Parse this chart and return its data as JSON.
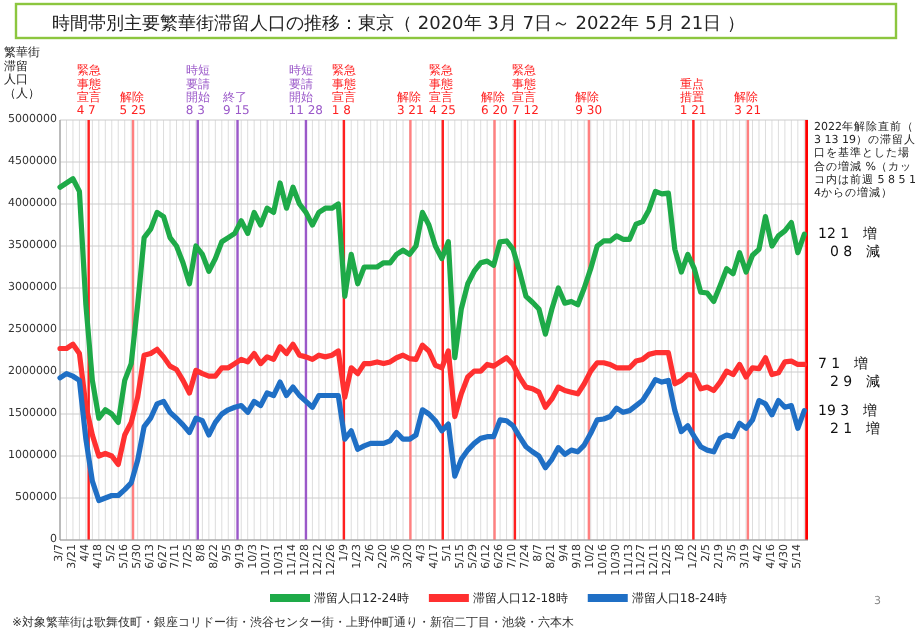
{
  "chart_data": {
    "type": "line",
    "title": "時間帯別主要繁華街滞留人口の推移：東京（ 2020年 3月 7日～ 2022年 5月 21日 ）",
    "ylabel": "繁華街滞留人口（人）",
    "x": [
      "2020-03-07",
      "2020-03-14",
      "2020-03-21",
      "2020-03-28",
      "2020-04-04",
      "2020-04-11",
      "2020-04-18",
      "2020-04-25",
      "2020-05-02",
      "2020-05-09",
      "2020-05-16",
      "2020-05-23",
      "2020-05-30",
      "2020-06-06",
      "2020-06-13",
      "2020-06-20",
      "2020-06-27",
      "2020-07-04",
      "2020-07-11",
      "2020-07-18",
      "2020-07-25",
      "2020-08-01",
      "2020-08-08",
      "2020-08-15",
      "2020-08-22",
      "2020-08-29",
      "2020-09-05",
      "2020-09-12",
      "2020-09-19",
      "2020-09-26",
      "2020-10-03",
      "2020-10-10",
      "2020-10-17",
      "2020-10-24",
      "2020-10-31",
      "2020-11-07",
      "2020-11-14",
      "2020-11-21",
      "2020-11-28",
      "2020-12-05",
      "2020-12-12",
      "2020-12-19",
      "2020-12-26",
      "2021-01-02",
      "2021-01-09",
      "2021-01-16",
      "2021-01-23",
      "2021-01-30",
      "2021-02-06",
      "2021-02-13",
      "2021-02-20",
      "2021-02-27",
      "2021-03-06",
      "2021-03-13",
      "2021-03-20",
      "2021-03-27",
      "2021-04-03",
      "2021-04-10",
      "2021-04-17",
      "2021-04-24",
      "2021-05-01",
      "2021-05-08",
      "2021-05-15",
      "2021-05-22",
      "2021-05-29",
      "2021-06-05",
      "2021-06-12",
      "2021-06-19",
      "2021-06-26",
      "2021-07-03",
      "2021-07-10",
      "2021-07-17",
      "2021-07-24",
      "2021-07-31",
      "2021-08-07",
      "2021-08-14",
      "2021-08-21",
      "2021-08-28",
      "2021-09-04",
      "2021-09-11",
      "2021-09-18",
      "2021-09-25",
      "2021-10-02",
      "2021-10-09",
      "2021-10-16",
      "2021-10-23",
      "2021-10-30",
      "2021-11-06",
      "2021-11-13",
      "2021-11-20",
      "2021-11-27",
      "2021-12-04",
      "2021-12-11",
      "2021-12-18",
      "2021-12-25",
      "2022-01-01",
      "2022-01-08",
      "2022-01-15",
      "2022-01-22",
      "2022-01-29",
      "2022-02-05",
      "2022-02-12",
      "2022-02-19",
      "2022-02-26",
      "2022-03-05",
      "2022-03-12",
      "2022-03-19",
      "2022-03-26",
      "2022-04-02",
      "2022-04-09",
      "2022-04-16",
      "2022-04-23",
      "2022-04-30",
      "2022-05-07",
      "2022-05-14",
      "2022-05-21"
    ],
    "series": [
      {
        "name": "滞留人口12-24時",
        "color": "#1eaa48",
        "values": [
          4200000,
          4250000,
          4300000,
          4150000,
          2800000,
          1900000,
          1450000,
          1550000,
          1500000,
          1400000,
          1900000,
          2100000,
          2800000,
          3600000,
          3700000,
          3900000,
          3850000,
          3600000,
          3500000,
          3300000,
          3050000,
          3500000,
          3400000,
          3200000,
          3350000,
          3550000,
          3600000,
          3650000,
          3800000,
          3650000,
          3900000,
          3750000,
          3950000,
          3900000,
          4250000,
          3950000,
          4200000,
          4000000,
          3900000,
          3750000,
          3900000,
          3950000,
          3950000,
          4000000,
          2900000,
          3400000,
          3050000,
          3250000,
          3250000,
          3250000,
          3300000,
          3300000,
          3400000,
          3450000,
          3400000,
          3500000,
          3900000,
          3750000,
          3500000,
          3350000,
          3550000,
          2170000,
          2750000,
          3050000,
          3200000,
          3300000,
          3320000,
          3270000,
          3550000,
          3560000,
          3460000,
          3200000,
          2900000,
          2830000,
          2750000,
          2450000,
          2750000,
          3000000,
          2820000,
          2840000,
          2800000,
          3000000,
          3230000,
          3500000,
          3560000,
          3560000,
          3620000,
          3580000,
          3580000,
          3760000,
          3790000,
          3930000,
          4150000,
          4120000,
          4130000,
          3460000,
          3190000,
          3400000,
          3230000,
          2950000,
          2940000,
          2840000,
          3030000,
          3230000,
          3170000,
          3420000,
          3190000,
          3390000,
          3460000,
          3850000,
          3500000,
          3620000,
          3680000,
          3780000,
          3420000,
          3640000
        ]
      },
      {
        "name": "滞留人口12-18時",
        "color": "#ff3030",
        "values": [
          2280000,
          2280000,
          2330000,
          2220000,
          1600000,
          1250000,
          1000000,
          1030000,
          1000000,
          900000,
          1250000,
          1400000,
          1700000,
          2200000,
          2220000,
          2270000,
          2180000,
          2070000,
          2030000,
          1900000,
          1750000,
          2020000,
          1980000,
          1950000,
          1950000,
          2050000,
          2050000,
          2100000,
          2150000,
          2120000,
          2220000,
          2100000,
          2180000,
          2150000,
          2300000,
          2220000,
          2330000,
          2200000,
          2180000,
          2150000,
          2200000,
          2180000,
          2200000,
          2250000,
          1700000,
          2050000,
          1980000,
          2100000,
          2100000,
          2120000,
          2100000,
          2120000,
          2170000,
          2200000,
          2160000,
          2150000,
          2320000,
          2250000,
          2080000,
          2050000,
          2250000,
          1470000,
          1740000,
          1940000,
          2010000,
          2010000,
          2090000,
          2070000,
          2120000,
          2170000,
          2090000,
          1940000,
          1820000,
          1800000,
          1760000,
          1580000,
          1680000,
          1820000,
          1780000,
          1760000,
          1740000,
          1860000,
          2010000,
          2110000,
          2110000,
          2090000,
          2050000,
          2050000,
          2050000,
          2130000,
          2150000,
          2210000,
          2230000,
          2230000,
          2230000,
          1860000,
          1900000,
          1970000,
          1960000,
          1800000,
          1820000,
          1780000,
          1880000,
          2010000,
          1970000,
          2090000,
          1940000,
          2050000,
          2040000,
          2170000,
          1970000,
          1990000,
          2120000,
          2130000,
          2090000,
          2090000
        ]
      },
      {
        "name": "滞留人口18-24時",
        "color": "#1f6fc5",
        "values": [
          1930000,
          1980000,
          1950000,
          1900000,
          1200000,
          700000,
          470000,
          500000,
          530000,
          530000,
          600000,
          680000,
          950000,
          1350000,
          1450000,
          1620000,
          1650000,
          1520000,
          1450000,
          1370000,
          1280000,
          1450000,
          1420000,
          1250000,
          1400000,
          1500000,
          1550000,
          1580000,
          1600000,
          1520000,
          1650000,
          1600000,
          1750000,
          1720000,
          1880000,
          1720000,
          1820000,
          1720000,
          1650000,
          1580000,
          1720000,
          1720000,
          1720000,
          1720000,
          1200000,
          1300000,
          1080000,
          1120000,
          1150000,
          1150000,
          1150000,
          1180000,
          1280000,
          1200000,
          1200000,
          1250000,
          1550000,
          1500000,
          1420000,
          1300000,
          1380000,
          760000,
          960000,
          1070000,
          1150000,
          1210000,
          1230000,
          1230000,
          1430000,
          1420000,
          1360000,
          1230000,
          1110000,
          1050000,
          1000000,
          860000,
          960000,
          1100000,
          1020000,
          1070000,
          1050000,
          1130000,
          1270000,
          1430000,
          1440000,
          1470000,
          1570000,
          1520000,
          1540000,
          1600000,
          1660000,
          1780000,
          1910000,
          1880000,
          1900000,
          1540000,
          1290000,
          1360000,
          1230000,
          1110000,
          1070000,
          1050000,
          1210000,
          1250000,
          1230000,
          1390000,
          1330000,
          1430000,
          1660000,
          1620000,
          1490000,
          1660000,
          1580000,
          1600000,
          1330000,
          1540000
        ]
      }
    ],
    "xlim": [
      "2020-03-07",
      "2022-05-25"
    ],
    "xticks": [
      {
        "value": "2020-03-07",
        "label": "3/7"
      },
      {
        "value": "2020-03-21",
        "label": "3/21"
      },
      {
        "value": "2020-04-04",
        "label": "4/4"
      },
      {
        "value": "2020-04-18",
        "label": "4/18"
      },
      {
        "value": "2020-05-02",
        "label": "5/2"
      },
      {
        "value": "2020-05-16",
        "label": "5/16"
      },
      {
        "value": "2020-05-30",
        "label": "5/30"
      },
      {
        "value": "2020-06-13",
        "label": "6/13"
      },
      {
        "value": "2020-06-27",
        "label": "6/27"
      },
      {
        "value": "2020-07-11",
        "label": "7/11"
      },
      {
        "value": "2020-07-25",
        "label": "7/25"
      },
      {
        "value": "2020-08-08",
        "label": "8/8"
      },
      {
        "value": "2020-08-22",
        "label": "8/22"
      },
      {
        "value": "2020-09-05",
        "label": "9/5"
      },
      {
        "value": "2020-09-19",
        "label": "9/19"
      },
      {
        "value": "2020-10-03",
        "label": "10/3"
      },
      {
        "value": "2020-10-17",
        "label": "10/17"
      },
      {
        "value": "2020-10-31",
        "label": "10/31"
      },
      {
        "value": "2020-11-14",
        "label": "11/14"
      },
      {
        "value": "2020-11-28",
        "label": "11/28"
      },
      {
        "value": "2020-12-12",
        "label": "12/12"
      },
      {
        "value": "2020-12-26",
        "label": "12/26"
      },
      {
        "value": "2021-01-09",
        "label": "1/9"
      },
      {
        "value": "2021-01-23",
        "label": "1/23"
      },
      {
        "value": "2021-02-06",
        "label": "2/6"
      },
      {
        "value": "2021-02-20",
        "label": "2/20"
      },
      {
        "value": "2021-03-06",
        "label": "3/6"
      },
      {
        "value": "2021-03-20",
        "label": "3/20"
      },
      {
        "value": "2021-04-03",
        "label": "4/3"
      },
      {
        "value": "2021-04-17",
        "label": "4/17"
      },
      {
        "value": "2021-05-01",
        "label": "5/1"
      },
      {
        "value": "2021-05-15",
        "label": "5/15"
      },
      {
        "value": "2021-05-29",
        "label": "5/29"
      },
      {
        "value": "2021-06-12",
        "label": "6/12"
      },
      {
        "value": "2021-06-26",
        "label": "6/26"
      },
      {
        "value": "2021-07-10",
        "label": "7/10"
      },
      {
        "value": "2021-07-24",
        "label": "7/24"
      },
      {
        "value": "2021-08-07",
        "label": "8/7"
      },
      {
        "value": "2021-08-21",
        "label": "8/21"
      },
      {
        "value": "2021-09-04",
        "label": "9/4"
      },
      {
        "value": "2021-09-18",
        "label": "9/18"
      },
      {
        "value": "2021-10-02",
        "label": "10/2"
      },
      {
        "value": "2021-10-16",
        "label": "10/16"
      },
      {
        "value": "2021-10-30",
        "label": "10/30"
      },
      {
        "value": "2021-11-13",
        "label": "11/13"
      },
      {
        "value": "2021-11-27",
        "label": "11/27"
      },
      {
        "value": "2021-12-11",
        "label": "12/11"
      },
      {
        "value": "2021-12-25",
        "label": "12/25"
      },
      {
        "value": "2022-01-08",
        "label": "1/8"
      },
      {
        "value": "2022-01-22",
        "label": "1/22"
      },
      {
        "value": "2022-02-05",
        "label": "2/5"
      },
      {
        "value": "2022-02-19",
        "label": "2/19"
      },
      {
        "value": "2022-03-05",
        "label": "3/5"
      },
      {
        "value": "2022-03-19",
        "label": "3/19"
      },
      {
        "value": "2022-04-02",
        "label": "4/2"
      },
      {
        "value": "2022-04-16",
        "label": "4/16"
      },
      {
        "value": "2022-04-30",
        "label": "4/30"
      },
      {
        "value": "2022-05-14",
        "label": "5/14"
      }
    ],
    "ylim": [
      0,
      5000000
    ],
    "yticks": [
      0,
      500000,
      1000000,
      1500000,
      2000000,
      2500000,
      3000000,
      3500000,
      4000000,
      4500000,
      5000000
    ],
    "grid": true,
    "legend": "bottom",
    "marker": "none",
    "line_style": "solid",
    "ref_lines": [
      {
        "axis": "x",
        "value": "2020-04-07",
        "label": "緊急事態宣言 4 7",
        "color": "#ff2020"
      },
      {
        "axis": "x",
        "value": "2020-05-25",
        "label": "解除 5 25",
        "color": "#ff8080"
      },
      {
        "axis": "x",
        "value": "2020-08-03",
        "label": "時短要請開始 8 3",
        "color": "#9b59c9"
      },
      {
        "axis": "x",
        "value": "2020-09-15",
        "label": "終了 9 15",
        "color": "#9b59c9"
      },
      {
        "axis": "x",
        "value": "2020-11-28",
        "label": "時短要請開始 11 28",
        "color": "#9b59c9"
      },
      {
        "axis": "x",
        "value": "2021-01-08",
        "label": "緊急事態宣言 1 8",
        "color": "#ff2020"
      },
      {
        "axis": "x",
        "value": "2021-03-21",
        "label": "解除 3 21",
        "color": "#ff8080"
      },
      {
        "axis": "x",
        "value": "2021-04-25",
        "label": "緊急事態宣言 4 25",
        "color": "#ff2020"
      },
      {
        "axis": "x",
        "value": "2021-06-20",
        "label": "解除 6 20",
        "color": "#ff8080"
      },
      {
        "axis": "x",
        "value": "2021-07-12",
        "label": "緊急事態宣言 7 12",
        "color": "#ff2020"
      },
      {
        "axis": "x",
        "value": "2021-09-30",
        "label": "解除 9 30",
        "color": "#ff8080"
      },
      {
        "axis": "x",
        "value": "2022-01-21",
        "label": "重点措置 1 21",
        "color": "#ff2020"
      },
      {
        "axis": "x",
        "value": "2022-03-21",
        "label": "解除 3 21",
        "color": "#ff8080"
      }
    ],
    "bands": [
      {
        "axis": "x",
        "from": "2022-05-22",
        "to": "2022-05-25",
        "color": "#ff0000"
      }
    ],
    "annotations": [
      "※対象繁華街は歌舞伎町・銀座コリドー街・渋谷センター街・上野仲町通り・新宿二丁目・池袋・六本木",
      "3",
      "2022年解除直前（3 13 19）の滞留人口を基準とした場合の増減 %（カッコ内は前週 5 8 5 14からの増減）",
      "12 1　増",
      "0 8　減",
      "7 1　増",
      "2 9　減",
      "19 3　増",
      "2 1　増"
    ]
  }
}
